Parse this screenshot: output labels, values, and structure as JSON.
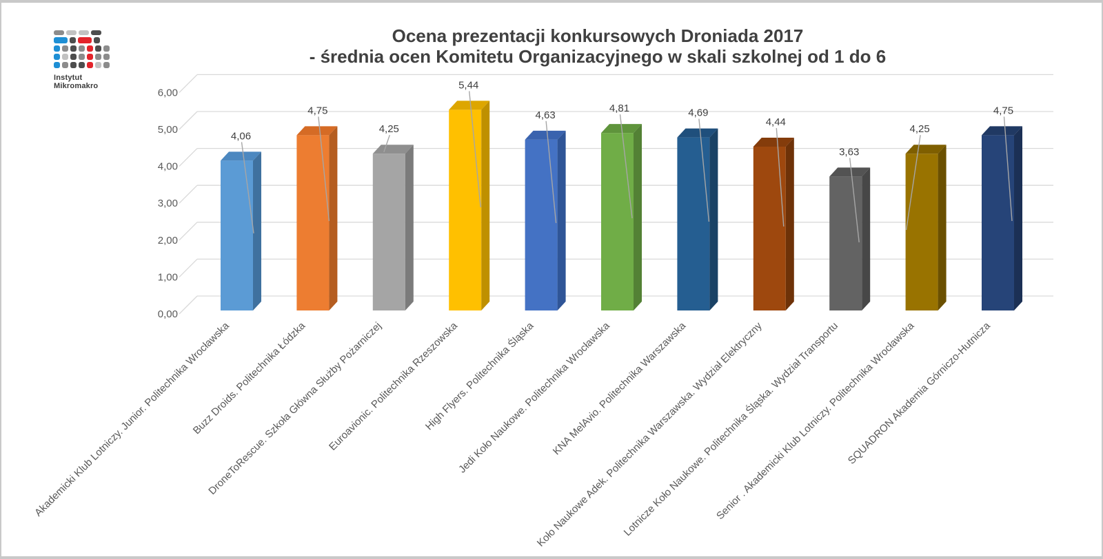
{
  "logo": {
    "line1": "Instytut",
    "line2": "Mikromakro",
    "colors": {
      "blue": "#1E8FD5",
      "red": "#E3242B",
      "dark": "#4D4D4D",
      "gray": "#8C8C8C",
      "light": "#C2C2C2"
    }
  },
  "title": {
    "line1": "Ocena prezentacji konkursowych Droniada 2017",
    "line2": "- średnia ocen Komitetu Organizacyjnego w skali szkolnej od 1 do 6"
  },
  "chart_data": {
    "type": "bar",
    "variant": "3d-column",
    "title": "Ocena prezentacji konkursowych Droniada 2017 - średnia ocen Komitetu Organizacyjnego w skali szkolnej od 1 do 6",
    "categories": [
      "Akademicki Klub Lotniczy. Junior. Politechnika Wrocławska",
      "Buzz Droids. Politechnika Łódzka",
      "DroneToRescue. Szkoła Główna Służby Pożarniczej",
      "Euroavionic. Politechnika Rzeszowska",
      "High Flyers. Politechnika Śląska",
      "Jedi Koło Naukowe. Politechnika Wrocławska",
      "KNA MelAvio. Politechnika Warszawska",
      "Koło Naukowe Adek. Politechnika Warszawska. Wydział Elektryczny",
      "Lotnicze Koło Naukowe. Politechnika Śląska. Wydział Transportu",
      "Senior . Akademicki Klub Lotniczy. Politechnika Wrocławska",
      "SQUADRON Akademia Górniczo-Hutnicza"
    ],
    "values": [
      4.06,
      4.75,
      4.25,
      5.44,
      4.63,
      4.81,
      4.69,
      4.44,
      3.63,
      4.25,
      4.75
    ],
    "value_labels": [
      "4,06",
      "4,75",
      "4,25",
      "5,44",
      "4,63",
      "4,81",
      "4,69",
      "4,44",
      "3,63",
      "4,25",
      "4,75"
    ],
    "y_ticks": [
      "0,00",
      "1,00",
      "2,00",
      "3,00",
      "4,00",
      "5,00",
      "6,00"
    ],
    "ylim": [
      0,
      6
    ],
    "grid": true,
    "legend": "none",
    "xlabel": "",
    "ylabel": "",
    "bar_colors": {
      "front": [
        "#5B9BD5",
        "#ED7D31",
        "#A5A5A5",
        "#FFC000",
        "#4472C4",
        "#70AD47",
        "#255E91",
        "#9E480E",
        "#636363",
        "#997300",
        "#264478"
      ],
      "side": [
        "#3F719F",
        "#B55D20",
        "#7B7B7B",
        "#BF9000",
        "#2F5597",
        "#538135",
        "#1A4265",
        "#6E3208",
        "#474747",
        "#6B5000",
        "#1B3055"
      ],
      "top": [
        "#4C88C0",
        "#D56B25",
        "#8F8F8F",
        "#DDA600",
        "#3A63AE",
        "#5F943C",
        "#1F4F7C",
        "#843C0B",
        "#535353",
        "#7F5F00",
        "#203963"
      ]
    },
    "style_colors": {
      "gridline": "#D9D9D9",
      "leader_line": "#A6A6A6",
      "axis_text": "#595959",
      "value_label_text": "#404040",
      "title_text": "#404040"
    }
  }
}
